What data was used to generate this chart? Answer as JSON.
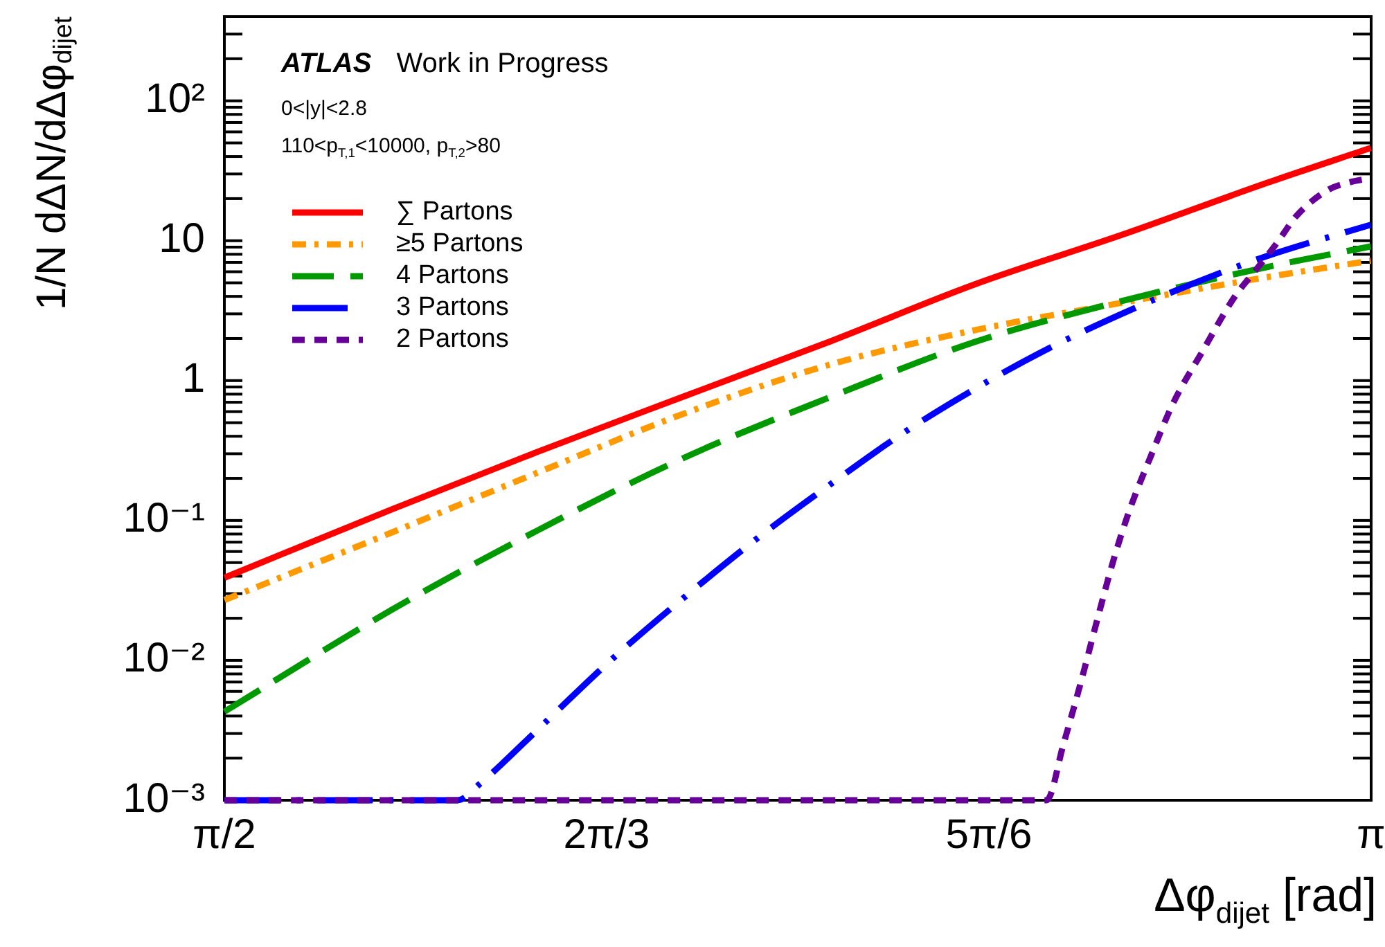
{
  "chart_data": {
    "type": "line",
    "xlabel": "Δφ$_{dijet}$ [rad]",
    "ylabel": "1/N dΔN/dΔφ$_{dijet}$",
    "annotations": [
      "ATLAS",
      "Work in Progress",
      "0<|y|<2.8",
      "110<p$_{T,1}$<10000, p$_{T,2}$>80"
    ],
    "xlim": [
      1.5708,
      3.1416
    ],
    "xticks": [
      {
        "value": 1.5708,
        "label": "π/2"
      },
      {
        "value": 2.0944,
        "label": "2π/3"
      },
      {
        "value": 2.618,
        "label": "5π/6"
      },
      {
        "value": 3.1416,
        "label": "π"
      }
    ],
    "ylim": [
      0.001,
      400
    ],
    "yticks": [
      {
        "value": 0.001,
        "label": "10⁻³"
      },
      {
        "value": 0.002,
        "label": null
      },
      {
        "value": 0.003,
        "label": null
      },
      {
        "value": 0.004,
        "label": null
      },
      {
        "value": 0.005,
        "label": null
      },
      {
        "value": 0.006,
        "label": null
      },
      {
        "value": 0.007,
        "label": null
      },
      {
        "value": 0.008,
        "label": null
      },
      {
        "value": 0.009,
        "label": null
      },
      {
        "value": 0.01,
        "label": "10⁻²"
      },
      {
        "value": 0.02,
        "label": null
      },
      {
        "value": 0.03,
        "label": null
      },
      {
        "value": 0.04,
        "label": null
      },
      {
        "value": 0.05,
        "label": null
      },
      {
        "value": 0.06,
        "label": null
      },
      {
        "value": 0.07,
        "label": null
      },
      {
        "value": 0.08,
        "label": null
      },
      {
        "value": 0.09,
        "label": null
      },
      {
        "value": 0.1,
        "label": "10⁻¹"
      },
      {
        "value": 0.2,
        "label": null
      },
      {
        "value": 0.3,
        "label": null
      },
      {
        "value": 0.4,
        "label": null
      },
      {
        "value": 0.5,
        "label": null
      },
      {
        "value": 0.6,
        "label": null
      },
      {
        "value": 0.7,
        "label": null
      },
      {
        "value": 0.8,
        "label": null
      },
      {
        "value": 0.9,
        "label": null
      },
      1,
      {
        "value": 2,
        "label": null
      },
      {
        "value": 3,
        "label": null
      },
      {
        "value": 4,
        "label": null
      },
      {
        "value": 5,
        "label": null
      },
      {
        "value": 6,
        "label": null
      },
      {
        "value": 7,
        "label": null
      },
      {
        "value": 8,
        "label": null
      },
      {
        "value": 9,
        "label": null
      },
      10,
      {
        "value": 20,
        "label": null
      },
      {
        "value": 30,
        "label": null
      },
      {
        "value": 40,
        "label": null
      },
      {
        "value": 50,
        "label": null
      },
      {
        "value": 60,
        "label": null
      },
      {
        "value": 70,
        "label": null
      },
      {
        "value": 80,
        "label": null
      },
      {
        "value": 90,
        "label": null
      },
      {
        "value": 100,
        "label": "10²"
      },
      {
        "value": 200,
        "label": null
      },
      {
        "value": 300,
        "label": null
      }
    ],
    "log": "y",
    "legend": "top left",
    "marker": "none",
    "series": [
      {
        "name": "∑ Partons",
        "color": "#ff0000",
        "line_style": "solid",
        "x": [
          1.571,
          1.8,
          2.0,
          2.2,
          2.4,
          2.6,
          2.8,
          3.0,
          3.141
        ],
        "values": [
          0.039,
          0.12,
          0.31,
          0.77,
          1.9,
          4.9,
          11,
          26,
          46
        ]
      },
      {
        "name": "≥5 Partons",
        "color": "#ff9900",
        "line_style": "dashed",
        "x": [
          1.571,
          1.8,
          2.0,
          2.2,
          2.4,
          2.6,
          2.8,
          3.0,
          3.141
        ],
        "values": [
          0.027,
          0.082,
          0.22,
          0.58,
          1.3,
          2.3,
          3.6,
          5.5,
          7.2
        ]
      },
      {
        "name": "4 Partons",
        "color": "#009900",
        "line_style": "dashed",
        "x": [
          1.571,
          1.8,
          2.0,
          2.2,
          2.4,
          2.6,
          2.8,
          3.0,
          3.141
        ],
        "values": [
          0.0043,
          0.023,
          0.085,
          0.28,
          0.76,
          1.9,
          3.7,
          6.5,
          9.1
        ]
      },
      {
        "name": "3 Partons",
        "color": "#0000ff",
        "line_style": "dashed",
        "x": [
          1.571,
          1.89,
          1.92,
          1.95,
          2.0,
          2.1,
          2.2,
          2.3,
          2.4,
          2.5,
          2.6,
          2.7,
          2.8,
          2.9,
          3.0,
          3.141
        ],
        "values": [
          0.001,
          0.001,
          0.0013,
          0.0018,
          0.0032,
          0.01,
          0.028,
          0.074,
          0.18,
          0.42,
          0.88,
          1.7,
          3.0,
          5.0,
          7.8,
          13
        ]
      },
      {
        "name": "2 Partons",
        "color": "#660099",
        "line_style": "dashed",
        "x": [
          1.571,
          2.697,
          2.72,
          2.745,
          2.768,
          2.79,
          2.811,
          2.84,
          2.871,
          2.91,
          2.955,
          2.985,
          3.013,
          3.039,
          3.082,
          3.11,
          3.141
        ],
        "values": [
          0.001,
          0.001,
          0.0025,
          0.0073,
          0.021,
          0.055,
          0.12,
          0.29,
          0.7,
          1.6,
          4.0,
          6.3,
          9.7,
          15,
          23,
          26,
          28
        ]
      }
    ]
  }
}
